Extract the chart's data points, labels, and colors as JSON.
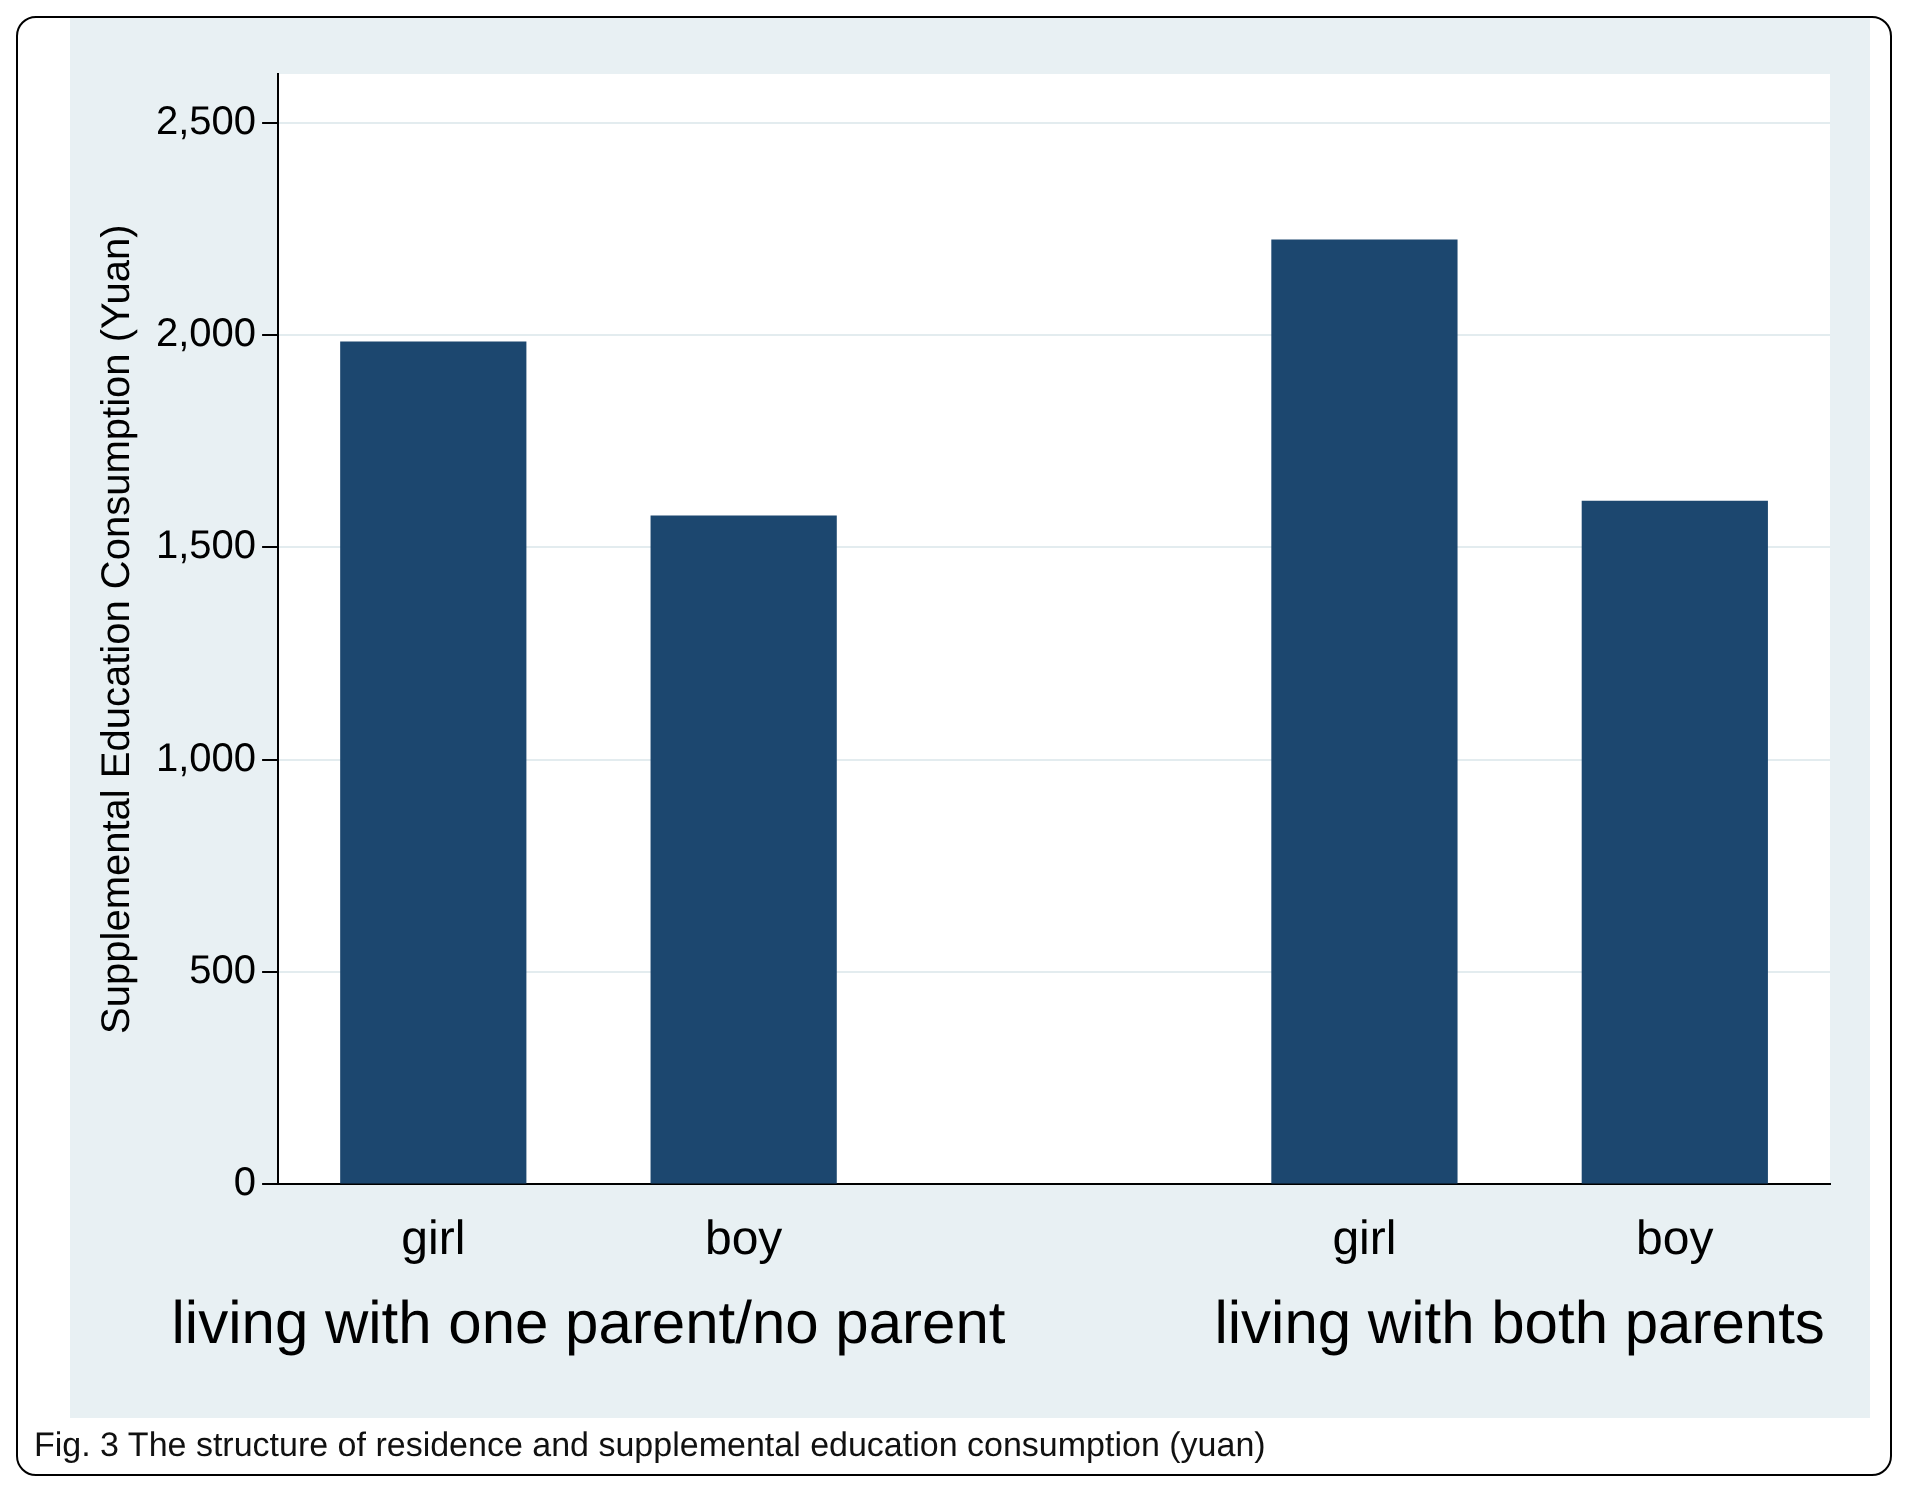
{
  "chart_data": {
    "type": "bar",
    "title": "Fig. 3 The structure of residence and supplemental education consumption (yuan)",
    "ylabel": "Supplemental Education Consumption (Yuan)",
    "categories": [
      "girl",
      "boy",
      null,
      "girl",
      "boy"
    ],
    "values": [
      1985,
      1575,
      null,
      2225,
      1610
    ],
    "color": "#1c476f",
    "ylim": [
      0,
      2615
    ],
    "yticks": [
      0,
      {
        "value": 500,
        "label": "500"
      },
      {
        "value": 1000,
        "label": "1,000"
      },
      {
        "value": 1500,
        "label": "1,500"
      },
      {
        "value": 2000,
        "label": "2,000"
      },
      {
        "value": 2500,
        "label": "2,500"
      }
    ],
    "annotations": [
      "living with one parent/no parent",
      "living with both parents"
    ],
    "grid": "y",
    "legend": false
  }
}
